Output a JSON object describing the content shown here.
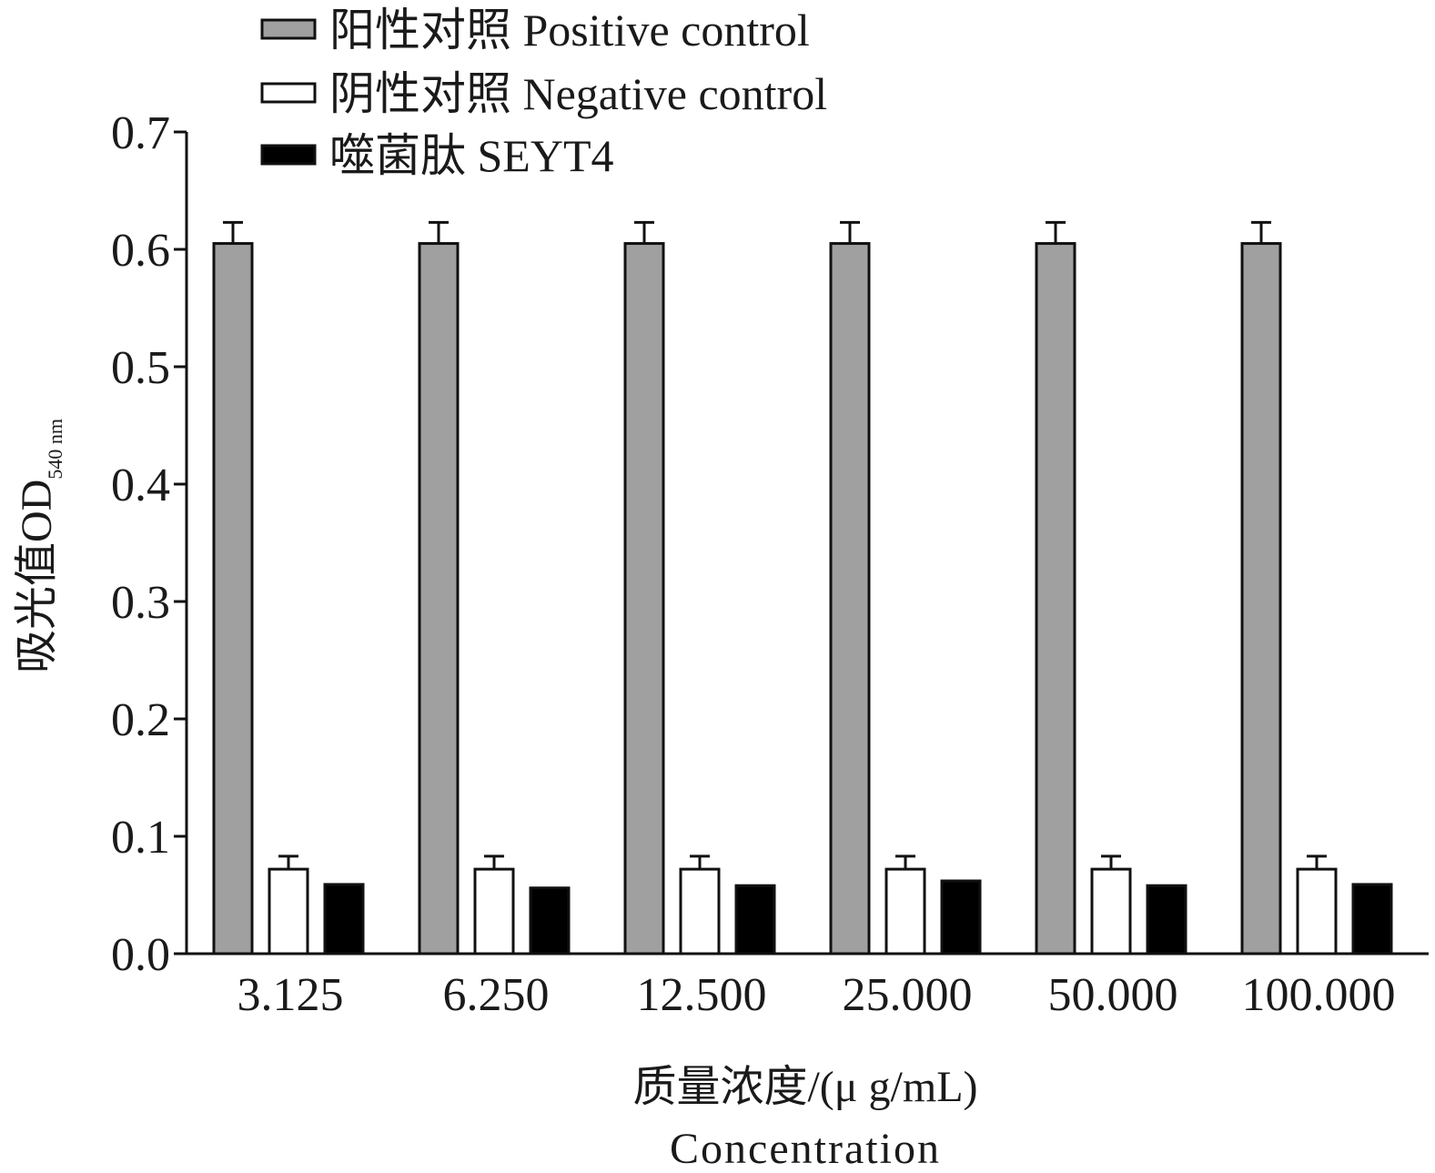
{
  "chart_data": {
    "type": "bar",
    "categories": [
      "3.125",
      "6.250",
      "12.500",
      "25.000",
      "50.000",
      "100.000"
    ],
    "series": [
      {
        "name": "阳性对照 Positive control",
        "values": [
          0.605,
          0.605,
          0.605,
          0.605,
          0.605,
          0.605
        ],
        "errors": [
          0.018,
          0.018,
          0.018,
          0.018,
          0.018,
          0.018
        ]
      },
      {
        "name": "阴性对照 Negative control",
        "values": [
          0.072,
          0.072,
          0.072,
          0.072,
          0.072,
          0.072
        ],
        "errors": [
          0.011,
          0.011,
          0.011,
          0.011,
          0.011,
          0.011
        ]
      },
      {
        "name": "噬菌肽 SEYT4",
        "values": [
          0.059,
          0.056,
          0.058,
          0.062,
          0.058,
          0.059
        ],
        "errors": [
          0.001,
          0.001,
          0.002,
          0.001,
          0.001,
          0.001
        ]
      }
    ],
    "colors": [
      "#a0a0a0",
      "#ffffff",
      "#000000"
    ],
    "ylim": [
      0,
      0.7
    ],
    "yticks": [
      "0.0",
      "0.1",
      "0.2",
      "0.3",
      "0.4",
      "0.5",
      "0.6",
      "0.7"
    ],
    "ylabel": "吸光值OD",
    "ylabel_sub": "540 nm",
    "xlabel": "质量浓度/(μ g/mL)",
    "xlabel2": "Concentration",
    "legend_position": "top-left",
    "grid": false
  }
}
